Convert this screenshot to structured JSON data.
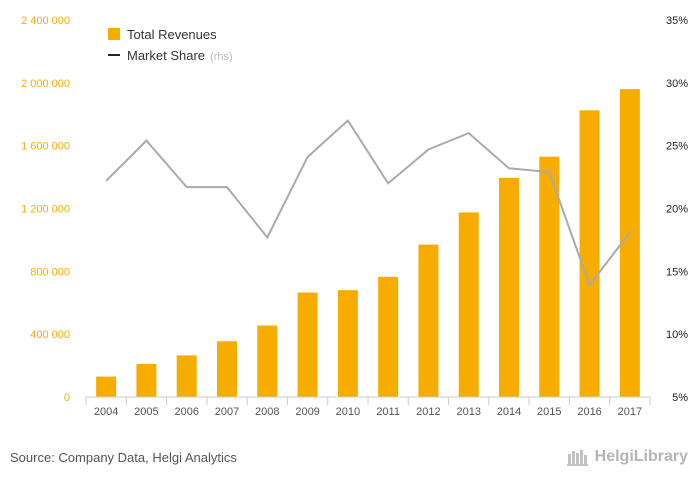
{
  "chart_data": {
    "type": "bar",
    "categories": [
      "2004",
      "2005",
      "2006",
      "2007",
      "2008",
      "2009",
      "2010",
      "2011",
      "2012",
      "2013",
      "2014",
      "2015",
      "2016",
      "2017"
    ],
    "series": [
      {
        "name": "Total Revenues",
        "type": "bar",
        "axis": "left",
        "color": "#f6ad00",
        "values": [
          130000,
          210000,
          265000,
          355000,
          455000,
          665000,
          680000,
          765000,
          970000,
          1175000,
          1395000,
          1530000,
          1825000,
          1960000
        ]
      },
      {
        "name": "Market Share",
        "name_suffix": "(rhs)",
        "type": "line",
        "axis": "right",
        "color": "#aaaaaa",
        "values": [
          22.2,
          25.4,
          21.7,
          21.7,
          17.7,
          24.1,
          27.0,
          22.0,
          24.7,
          26.0,
          23.2,
          22.9,
          13.9,
          18.1
        ]
      }
    ],
    "y_left": {
      "range": [
        0,
        2400000
      ],
      "ticks": [
        0,
        400000,
        800000,
        1200000,
        1600000,
        2000000,
        2400000
      ],
      "tick_labels": [
        "0",
        "400 000",
        "800 000",
        "1 200 000",
        "1 600 000",
        "2 000 000",
        "2 400 000"
      ],
      "color": "#f6ad00"
    },
    "y_right": {
      "range": [
        5,
        35
      ],
      "ticks": [
        5,
        10,
        15,
        20,
        25,
        30,
        35
      ],
      "tick_labels": [
        "5%",
        "10%",
        "15%",
        "20%",
        "25%",
        "30%",
        "35%"
      ],
      "color": "#222222"
    },
    "legend": {
      "placement": "top-left",
      "items": [
        {
          "label": "Total Revenues",
          "swatch": "bar",
          "color": "#f6ad00"
        },
        {
          "label": "Market Share",
          "suffix": "(rhs)",
          "swatch": "line",
          "color": "#222222"
        }
      ]
    },
    "grid": false
  },
  "footer": {
    "source": "Source: Company Data, Helgi Analytics",
    "logo_text": "HelgiLibrary"
  }
}
